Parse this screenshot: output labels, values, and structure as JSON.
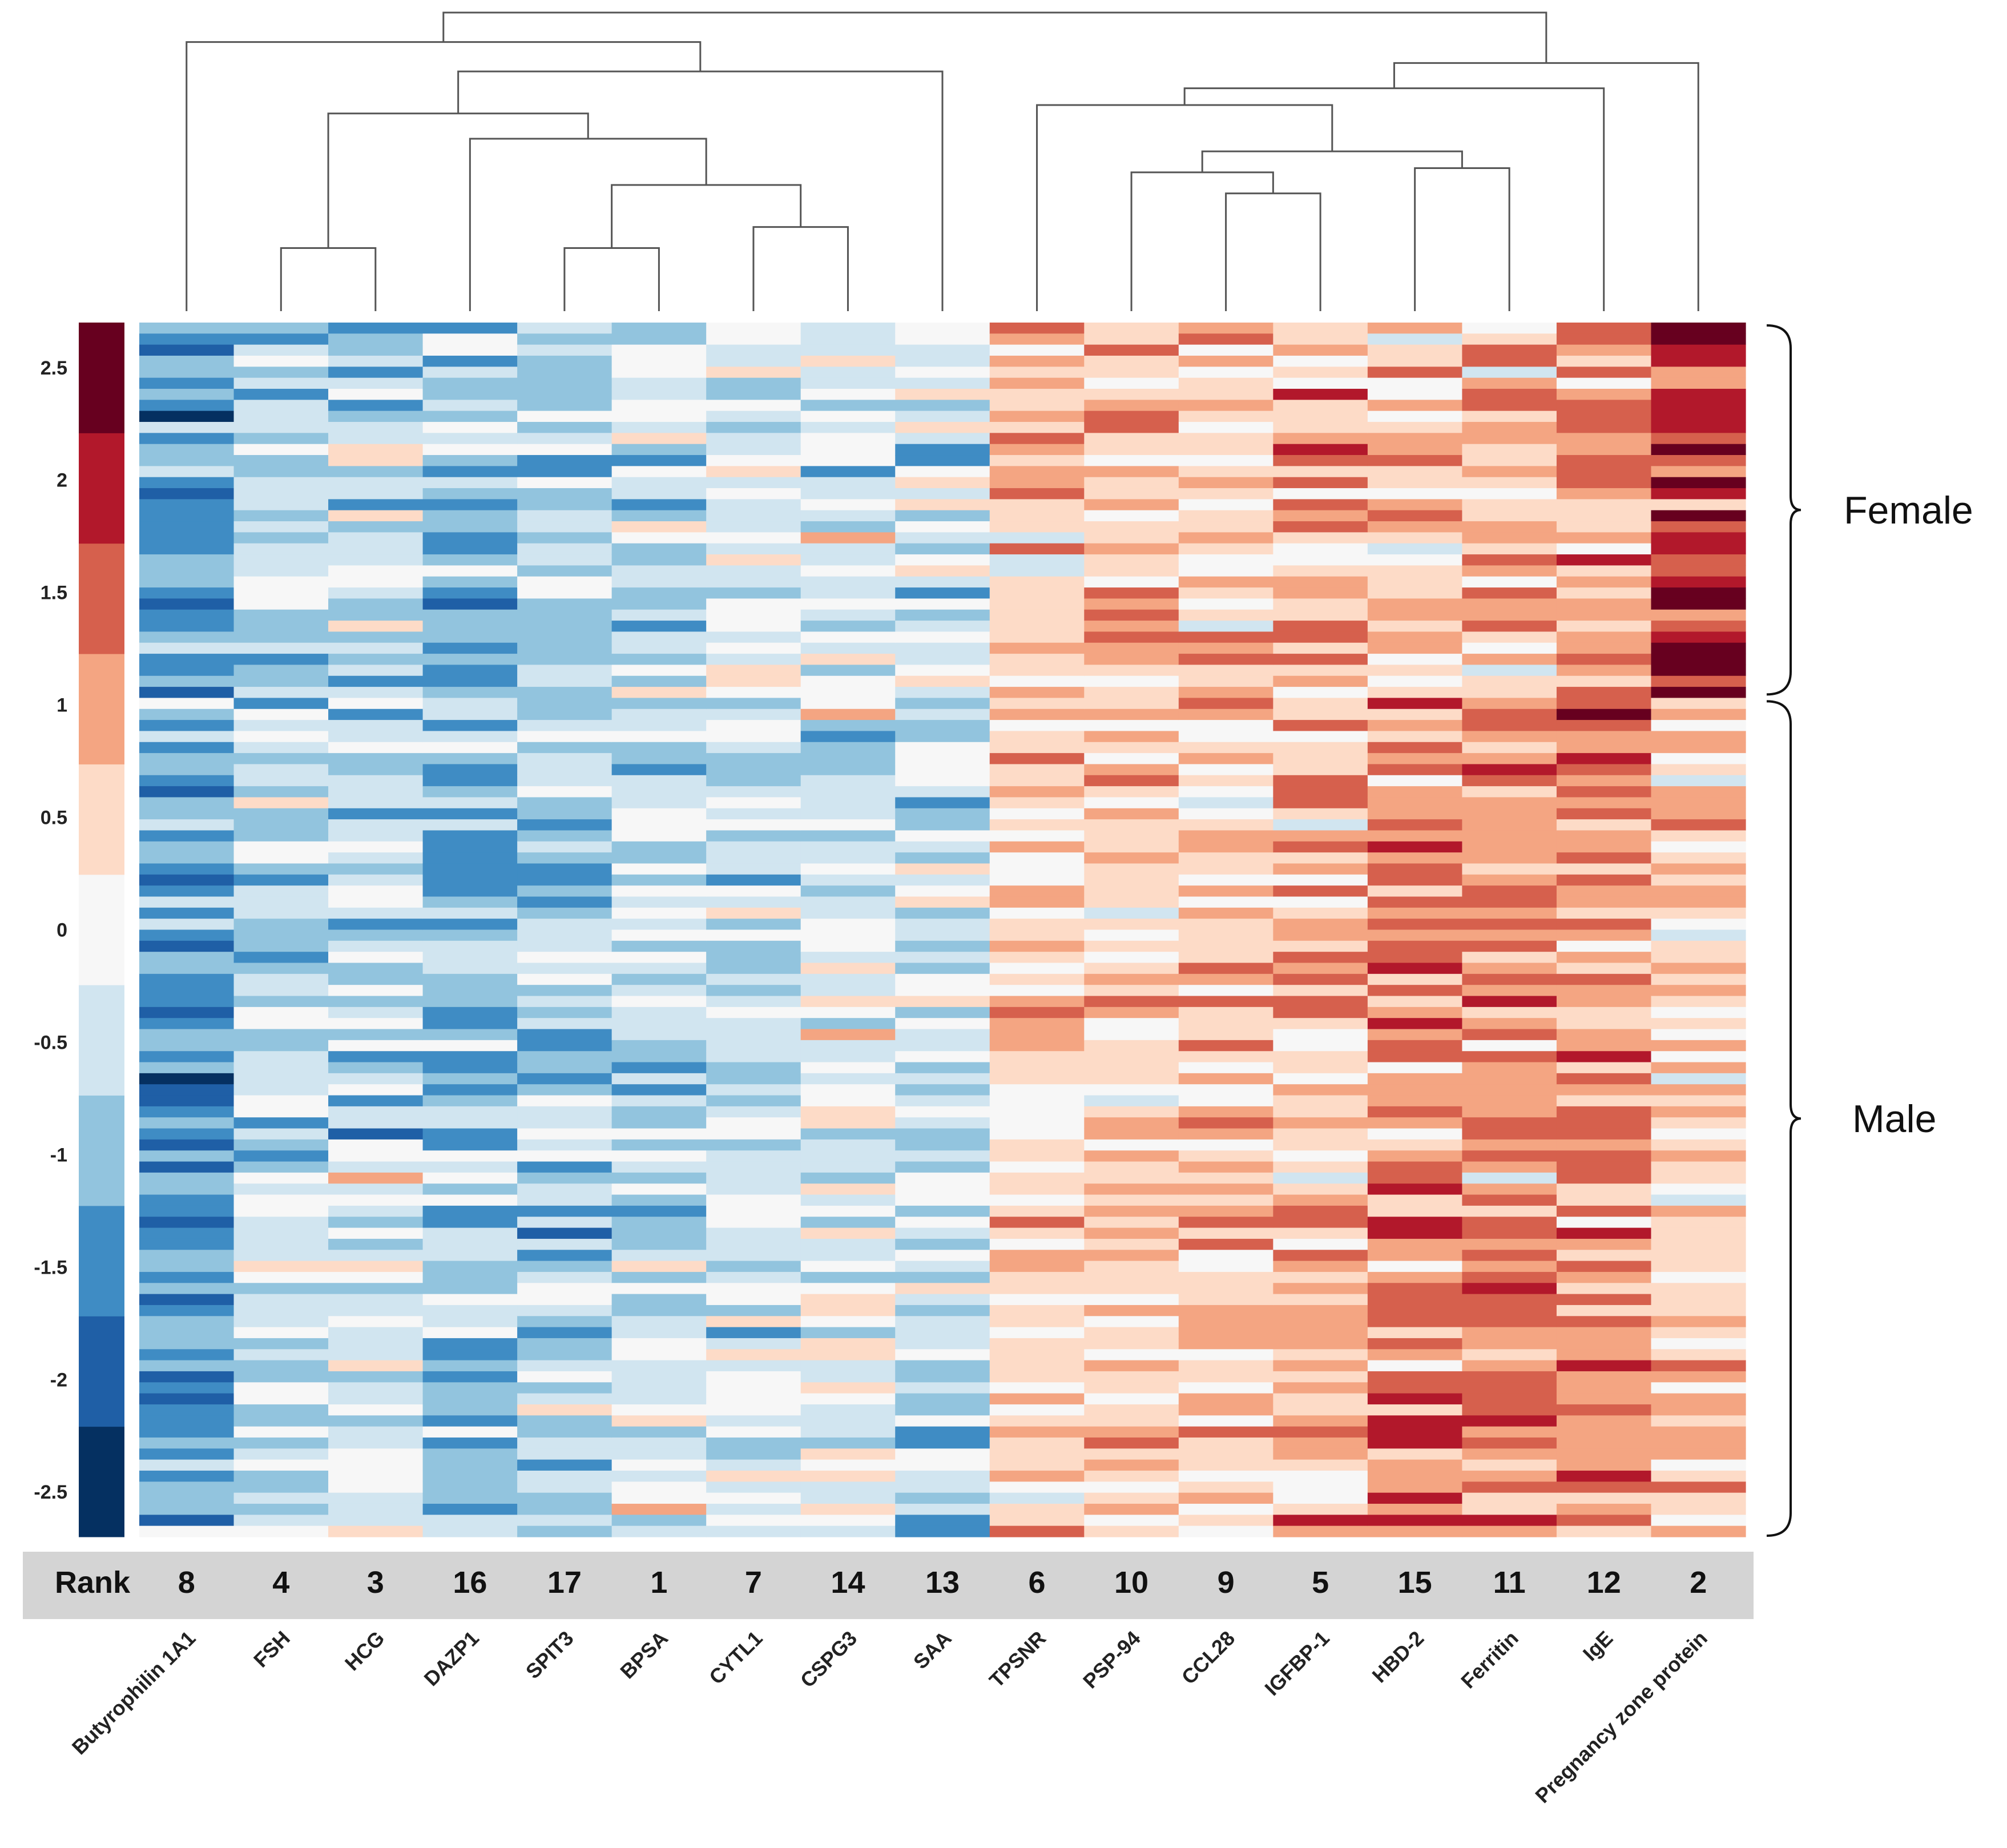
{
  "chart_data": {
    "type": "heatmap",
    "title": "",
    "columns": [
      "Butyrophilin 1A1",
      "FSH",
      "HCG",
      "DAZP1",
      "SPIT3",
      "BPSA",
      "CYTL1",
      "CSPG3",
      "SAA",
      "TPSNR",
      "PSP-94",
      "CCL28",
      "IGFBP-1",
      "HBD-2",
      "Ferritin",
      "IgE",
      "Pregnancy zone protein"
    ],
    "ranks": [
      "8",
      "4",
      "3",
      "16",
      "17",
      "1",
      "7",
      "14",
      "13",
      "6",
      "10",
      "9",
      "5",
      "15",
      "11",
      "12",
      "2"
    ],
    "rank_label": "Rank",
    "column_mean_z": [
      -1.3,
      -0.6,
      -0.55,
      -0.9,
      -0.7,
      -0.5,
      -0.35,
      -0.2,
      -0.5,
      0.55,
      0.5,
      0.55,
      0.75,
      0.9,
      0.9,
      1.05,
      1.1
    ],
    "groups": [
      {
        "label": "Female",
        "n_rows": 34
      },
      {
        "label": "Male",
        "n_rows": 76
      }
    ],
    "color_scale": {
      "min": -2.7,
      "max": 2.7,
      "ticks": [
        "2.5",
        "2",
        "1.5",
        "1",
        "0.5",
        "0",
        "-0.5",
        "-1",
        "-1.5",
        "-2",
        "-2.5"
      ],
      "tick_values": [
        2.5,
        2,
        1.5,
        1,
        0.5,
        0,
        -0.5,
        -1,
        -1.5,
        -2,
        -2.5
      ],
      "colors": [
        "#053061",
        "#1f5fa6",
        "#3f8cc4",
        "#92c4de",
        "#d1e5f0",
        "#f7f7f7",
        "#fddbc7",
        "#f4a582",
        "#d6604d",
        "#b2182b",
        "#67001f"
      ]
    },
    "dendrogram": {
      "nodes": [
        {
          "id": "n1",
          "children": [
            1,
            2
          ],
          "height": 0.15
        },
        {
          "id": "n2",
          "children": [
            4,
            5
          ],
          "height": 0.15
        },
        {
          "id": "n3",
          "children": [
            6,
            7
          ],
          "height": 0.2
        },
        {
          "id": "n4",
          "children": [
            "n2",
            "n3"
          ],
          "height": 0.3
        },
        {
          "id": "n5",
          "children": [
            3,
            "n4"
          ],
          "height": 0.41
        },
        {
          "id": "n6",
          "children": [
            "n1",
            "n5"
          ],
          "height": 0.47
        },
        {
          "id": "n7",
          "children": [
            "n6",
            8
          ],
          "height": 0.57
        },
        {
          "id": "n8",
          "children": [
            0,
            "n7"
          ],
          "height": 0.64
        },
        {
          "id": "n9",
          "children": [
            11,
            12
          ],
          "height": 0.28
        },
        {
          "id": "n10",
          "children": [
            10,
            "n9"
          ],
          "height": 0.33
        },
        {
          "id": "n11",
          "children": [
            13,
            14
          ],
          "height": 0.34
        },
        {
          "id": "n12",
          "children": [
            "n10",
            "n11"
          ],
          "height": 0.38
        },
        {
          "id": "n13",
          "children": [
            9,
            "n12"
          ],
          "height": 0.49
        },
        {
          "id": "n14",
          "children": [
            "n13",
            15
          ],
          "height": 0.53
        },
        {
          "id": "n15",
          "children": [
            "n14",
            16
          ],
          "height": 0.59
        },
        {
          "id": "n16",
          "children": [
            "n8",
            "n15"
          ],
          "height": 0.71
        }
      ]
    }
  }
}
